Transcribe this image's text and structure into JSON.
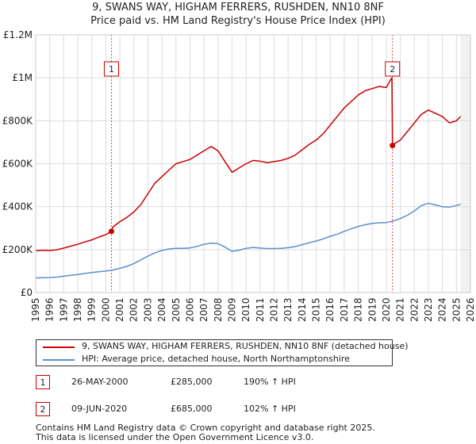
{
  "chart_data": {
    "type": "line",
    "title": "9, SWANS WAY, HIGHAM FERRERS, RUSHDEN, NN10 8NF",
    "subtitle": "Price paid vs. HM Land Registry's House Price Index (HPI)",
    "xlim": [
      1995,
      2026
    ],
    "ylim": [
      0,
      1200000
    ],
    "x_ticks": [
      "1995",
      "1996",
      "1997",
      "1998",
      "1999",
      "2000",
      "2001",
      "2002",
      "2003",
      "2004",
      "2005",
      "2006",
      "2007",
      "2008",
      "2009",
      "2010",
      "2011",
      "2012",
      "2013",
      "2014",
      "2015",
      "2016",
      "2017",
      "2018",
      "2019",
      "2020",
      "2021",
      "2022",
      "2023",
      "2024",
      "2025",
      "2026"
    ],
    "y_ticks": [
      {
        "value": 0,
        "label": "£0"
      },
      {
        "value": 200000,
        "label": "£200K"
      },
      {
        "value": 400000,
        "label": "£400K"
      },
      {
        "value": 600000,
        "label": "£600K"
      },
      {
        "value": 800000,
        "label": "£800K"
      },
      {
        "value": 1000000,
        "label": "£1M"
      },
      {
        "value": 1200000,
        "label": "£1.2M"
      }
    ],
    "grid": true,
    "series": [
      {
        "name": "9, SWANS WAY, HIGHAM FERRERS, RUSHDEN, NN10 8NF (detached house)",
        "color": "#cc0000",
        "x": [
          1995.0,
          1995.5,
          1996.0,
          1996.5,
          1997.0,
          1997.5,
          1998.0,
          1998.5,
          1999.0,
          1999.5,
          2000.0,
          2000.4,
          2000.5,
          2001.0,
          2001.5,
          2002.0,
          2002.5,
          2003.0,
          2003.5,
          2004.0,
          2004.5,
          2005.0,
          2005.5,
          2006.0,
          2006.5,
          2007.0,
          2007.5,
          2008.0,
          2008.5,
          2009.0,
          2009.5,
          2010.0,
          2010.5,
          2011.0,
          2011.5,
          2012.0,
          2012.5,
          2013.0,
          2013.5,
          2014.0,
          2014.5,
          2015.0,
          2015.5,
          2016.0,
          2016.5,
          2017.0,
          2017.5,
          2018.0,
          2018.5,
          2019.0,
          2019.5,
          2020.0,
          2020.3,
          2020.4,
          2020.44,
          2020.5,
          2021.0,
          2021.5,
          2022.0,
          2022.5,
          2023.0,
          2023.5,
          2024.0,
          2024.5,
          2025.0,
          2025.3
        ],
        "values": [
          195000,
          197000,
          196000,
          199000,
          207000,
          216000,
          225000,
          236000,
          245000,
          258000,
          270000,
          285000,
          305000,
          330000,
          350000,
          375000,
          410000,
          460000,
          510000,
          540000,
          570000,
          600000,
          610000,
          620000,
          640000,
          660000,
          680000,
          660000,
          610000,
          560000,
          580000,
          600000,
          615000,
          612000,
          605000,
          610000,
          615000,
          625000,
          640000,
          665000,
          690000,
          710000,
          740000,
          780000,
          820000,
          860000,
          890000,
          920000,
          940000,
          950000,
          960000,
          955000,
          990000,
          1000000,
          685000,
          690000,
          710000,
          750000,
          790000,
          830000,
          850000,
          835000,
          820000,
          790000,
          800000,
          820000
        ]
      },
      {
        "name": "HPI: Average price, detached house, North Northamptonshire",
        "color": "#5b8fcc",
        "x": [
          1995.0,
          1995.5,
          1996.0,
          1996.5,
          1997.0,
          1997.5,
          1998.0,
          1998.5,
          1999.0,
          1999.5,
          2000.0,
          2000.5,
          2001.0,
          2001.5,
          2002.0,
          2002.5,
          2003.0,
          2003.5,
          2004.0,
          2004.5,
          2005.0,
          2005.5,
          2006.0,
          2006.5,
          2007.0,
          2007.5,
          2008.0,
          2008.5,
          2009.0,
          2009.5,
          2010.0,
          2010.5,
          2011.0,
          2011.5,
          2012.0,
          2012.5,
          2013.0,
          2013.5,
          2014.0,
          2014.5,
          2015.0,
          2015.5,
          2016.0,
          2016.5,
          2017.0,
          2017.5,
          2018.0,
          2018.5,
          2019.0,
          2019.5,
          2020.0,
          2020.5,
          2021.0,
          2021.5,
          2022.0,
          2022.5,
          2023.0,
          2023.5,
          2024.0,
          2024.5,
          2025.0,
          2025.3
        ],
        "values": [
          68000,
          69000,
          70000,
          72000,
          76000,
          80000,
          84000,
          89000,
          93000,
          97000,
          100000,
          105000,
          113000,
          122000,
          135000,
          152000,
          170000,
          185000,
          196000,
          203000,
          206000,
          206000,
          208000,
          215000,
          225000,
          230000,
          228000,
          212000,
          192000,
          197000,
          206000,
          210000,
          207000,
          205000,
          205000,
          206000,
          209000,
          214000,
          223000,
          232000,
          240000,
          250000,
          262000,
          272000,
          285000,
          297000,
          308000,
          316000,
          322000,
          325000,
          326000,
          333000,
          345000,
          360000,
          380000,
          405000,
          416000,
          408000,
          400000,
          398000,
          405000,
          412000
        ]
      }
    ],
    "annotations": [
      {
        "label": "1",
        "x": 2000.4,
        "price": 285000
      },
      {
        "label": "2",
        "x": 2020.44,
        "price": 685000
      }
    ]
  },
  "legend": {
    "entries": [
      {
        "label": "9, SWANS WAY, HIGHAM FERRERS, RUSHDEN, NN10 8NF (detached house)",
        "color": "#cc0000"
      },
      {
        "label": "HPI: Average price, detached house, North Northamptonshire",
        "color": "#5b8fcc"
      }
    ]
  },
  "sales": [
    {
      "num": "1",
      "date": "26-MAY-2000",
      "price": "£285,000",
      "hpi": "190% ↑ HPI"
    },
    {
      "num": "2",
      "date": "09-JUN-2020",
      "price": "£685,000",
      "hpi": "102% ↑ HPI"
    }
  ],
  "footer": {
    "line1": "Contains HM Land Registry data © Crown copyright and database right 2025.",
    "line2": "This data is licensed under the Open Government Licence v3.0."
  }
}
